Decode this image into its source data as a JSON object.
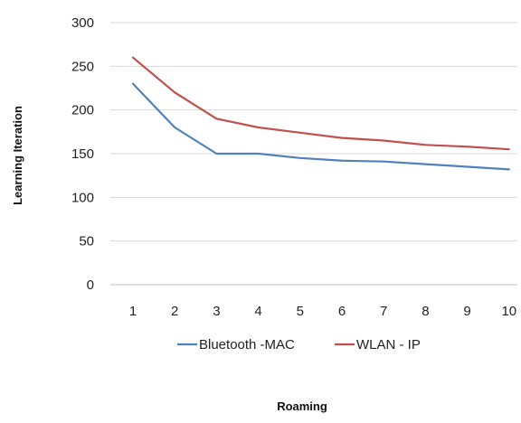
{
  "chart_data": {
    "type": "line",
    "title": "",
    "xlabel": "Roaming",
    "ylabel": "Learning Iteration",
    "categories": [
      "1",
      "2",
      "3",
      "4",
      "5",
      "6",
      "7",
      "8",
      "9",
      "10"
    ],
    "yticks": [
      "0",
      "50",
      "100",
      "150",
      "200",
      "250",
      "300"
    ],
    "ylim": [
      0,
      300
    ],
    "grid": true,
    "legend_position": "bottom",
    "series": [
      {
        "name": "Bluetooth -MAC",
        "color": "#4f81bd",
        "values": [
          230,
          180,
          150,
          150,
          145,
          142,
          141,
          138,
          135,
          132
        ]
      },
      {
        "name": "WLAN - IP",
        "color": "#c0504d",
        "values": [
          260,
          220,
          190,
          180,
          174,
          168,
          165,
          160,
          158,
          155
        ]
      }
    ]
  }
}
